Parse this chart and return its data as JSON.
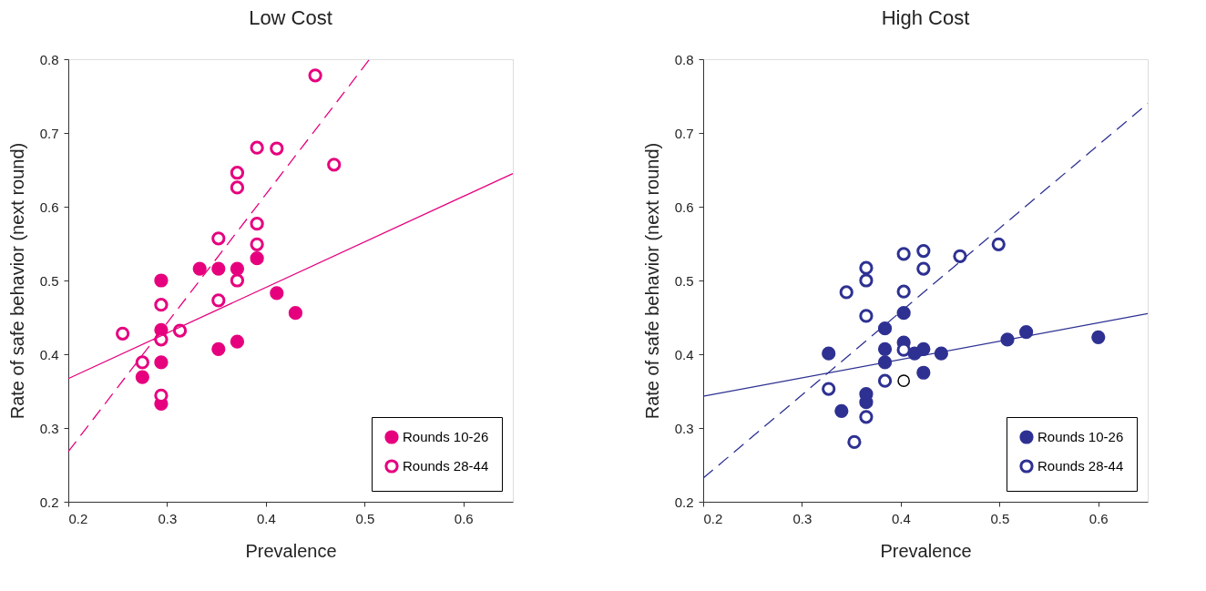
{
  "chart_data": [
    {
      "type": "scatter",
      "title": "Low Cost",
      "xlabel": "Prevalence",
      "ylabel": "Rate of safe behavior (next round)",
      "xlim": [
        0.2,
        0.65
      ],
      "ylim": [
        0.2,
        0.8
      ],
      "xticks": [
        0.2,
        0.3,
        0.4,
        0.5,
        0.6
      ],
      "yticks": [
        0.2,
        0.3,
        0.4,
        0.5,
        0.6,
        0.7,
        0.8
      ],
      "grid": false,
      "legend": "bottom right",
      "marker": "circle",
      "series": [
        {
          "name": "Rounds 10-26",
          "color": "#e6007e",
          "x": [
            0.294,
            0.294,
            0.294,
            0.294,
            0.275,
            0.333,
            0.352,
            0.371,
            0.391,
            0.411,
            0.43,
            0.352,
            0.371
          ],
          "values": [
            0.5,
            0.433,
            0.389,
            0.333,
            0.369,
            0.516,
            0.516,
            0.516,
            0.53,
            0.483,
            0.456,
            0.407,
            0.417
          ]
        },
        {
          "name": "Rounds 28-44",
          "color": "#e6007e",
          "x": [
            0.255,
            0.275,
            0.294,
            0.294,
            0.294,
            0.313,
            0.352,
            0.352,
            0.371,
            0.371,
            0.371,
            0.391,
            0.391,
            0.391,
            0.411,
            0.45,
            0.469
          ],
          "values": [
            0.428,
            0.389,
            0.467,
            0.42,
            0.344,
            0.432,
            0.557,
            0.473,
            0.646,
            0.626,
            0.5,
            0.68,
            0.577,
            0.549,
            0.679,
            0.778,
            0.657
          ]
        },
        {
          "type": "line",
          "color": "#e6007e",
          "marker": "none",
          "line_style": "solid",
          "x": [
            0.2,
            0.65
          ],
          "values": [
            0.367,
            0.645
          ]
        },
        {
          "type": "line",
          "color": "#e6007e",
          "marker": "none",
          "line_style": "dashed",
          "x": [
            0.2,
            0.505
          ],
          "values": [
            0.268,
            0.8
          ]
        }
      ]
    },
    {
      "type": "scatter",
      "title": "High Cost",
      "xlabel": "Prevalence",
      "ylabel": "Rate of safe behavior (next round)",
      "xlim": [
        0.2,
        0.65
      ],
      "ylim": [
        0.2,
        0.8
      ],
      "xticks": [
        0.2,
        0.3,
        0.4,
        0.5,
        0.6
      ],
      "yticks": [
        0.2,
        0.3,
        0.4,
        0.5,
        0.6,
        0.7,
        0.8
      ],
      "grid": false,
      "legend": "bottom right",
      "marker": "circle",
      "series": [
        {
          "name": "Rounds 10-26",
          "color": "#2e3192",
          "x": [
            0.327,
            0.34,
            0.365,
            0.365,
            0.384,
            0.384,
            0.384,
            0.403,
            0.403,
            0.414,
            0.423,
            0.423,
            0.441,
            0.508,
            0.527,
            0.6
          ],
          "values": [
            0.401,
            0.323,
            0.346,
            0.335,
            0.435,
            0.407,
            0.389,
            0.456,
            0.416,
            0.401,
            0.407,
            0.375,
            0.401,
            0.42,
            0.43,
            0.423
          ]
        },
        {
          "name": "Rounds 28-44",
          "color": "#2e3192",
          "x": [
            0.327,
            0.345,
            0.353,
            0.365,
            0.365,
            0.365,
            0.365,
            0.384,
            0.403,
            0.403,
            0.403,
            0.423,
            0.423,
            0.46,
            0.499
          ],
          "values": [
            0.353,
            0.484,
            0.281,
            0.517,
            0.5,
            0.452,
            0.315,
            0.364,
            0.536,
            0.485,
            0.406,
            0.54,
            0.516,
            0.533,
            0.549
          ]
        },
        {
          "color": "#000000",
          "x": [
            0.403
          ],
          "values": [
            0.364
          ]
        },
        {
          "type": "line",
          "color": "#2e3192",
          "marker": "none",
          "line_style": "solid",
          "x": [
            0.2,
            0.65
          ],
          "values": [
            0.343,
            0.455
          ]
        },
        {
          "type": "line",
          "color": "#2e3192",
          "marker": "none",
          "line_style": "dashed",
          "x": [
            0.2,
            0.65
          ],
          "values": [
            0.232,
            0.74
          ]
        }
      ]
    }
  ]
}
